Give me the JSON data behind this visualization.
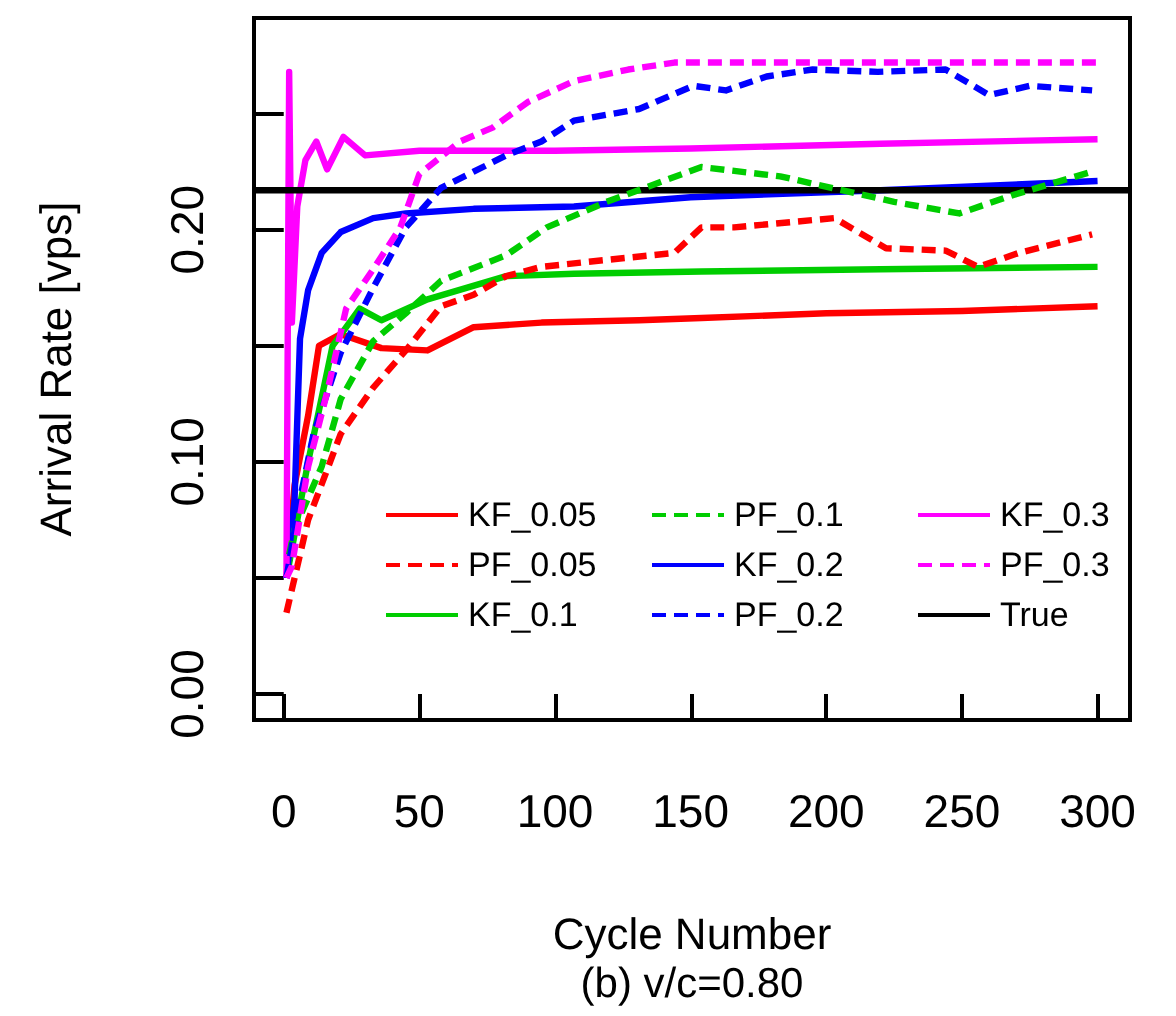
{
  "chart_data": {
    "type": "line",
    "xlabel": "Cycle Number",
    "ylabel": "Arrival Rate [vps]",
    "annotations": [
      "(b) v/c=0.80"
    ],
    "xlim": [
      -10.96,
      311.96
    ],
    "xticks": [
      0,
      50,
      100,
      150,
      200,
      250,
      300
    ],
    "ylim": [
      -0.0112,
      0.2912
    ],
    "yticks": [
      {
        "value": 0,
        "label": "0.00"
      },
      {
        "value": 0.05,
        "label": null
      },
      {
        "value": 0.1,
        "label": "0.10"
      },
      {
        "value": 0.15,
        "label": null
      },
      {
        "value": 0.2,
        "label": "0.20"
      },
      {
        "value": 0.25,
        "label": null
      }
    ],
    "grid": false,
    "legend": "bottom",
    "marker": "none",
    "line_style": "solid",
    "series": [
      {
        "name": "KF_0.05",
        "color": "#ff0000",
        "x": [
          1,
          4,
          9,
          13,
          21,
          36,
          53,
          70,
          95,
          131,
          154,
          200,
          250,
          300
        ],
        "values": [
          0.05,
          0.09,
          0.12,
          0.15,
          0.155,
          0.149,
          0.148,
          0.158,
          0.16,
          0.161,
          0.162,
          0.164,
          0.165,
          0.167
        ]
      },
      {
        "name": "PF_0.05",
        "color": "#ff0000",
        "line_style": "dashed",
        "x": [
          1,
          9,
          21,
          33,
          45,
          58,
          70,
          82,
          95,
          119,
          144,
          154,
          166,
          203,
          222,
          244,
          256,
          271,
          298
        ],
        "values": [
          0.035,
          0.075,
          0.112,
          0.132,
          0.148,
          0.167,
          0.172,
          0.18,
          0.184,
          0.187,
          0.19,
          0.201,
          0.201,
          0.205,
          0.192,
          0.191,
          0.184,
          0.19,
          0.198
        ]
      },
      {
        "name": "KF_0.1",
        "color": "#00cd00",
        "x": [
          1,
          9,
          18,
          28,
          36,
          53,
          82,
          107,
          154,
          220,
          300
        ],
        "values": [
          0.05,
          0.1,
          0.15,
          0.166,
          0.161,
          0.17,
          0.18,
          0.181,
          0.182,
          0.183,
          0.184
        ]
      },
      {
        "name": "PF_0.1",
        "color": "#00cd00",
        "line_style": "dashed",
        "x": [
          2,
          4,
          14,
          21,
          33,
          45,
          58,
          82,
          97,
          119,
          154,
          183,
          225,
          249,
          269,
          298
        ],
        "values": [
          0.06,
          0.071,
          0.098,
          0.127,
          0.152,
          0.164,
          0.178,
          0.189,
          0.201,
          0.212,
          0.227,
          0.223,
          0.212,
          0.207,
          0.215,
          0.225
        ]
      },
      {
        "name": "KF_0.2",
        "color": "#0000ff",
        "x": [
          1,
          4,
          6,
          9,
          14,
          21,
          33,
          45,
          70,
          107,
          150,
          220,
          300
        ],
        "values": [
          0.05,
          0.084,
          0.153,
          0.174,
          0.19,
          0.199,
          0.205,
          0.207,
          0.209,
          0.21,
          0.214,
          0.217,
          0.221
        ]
      },
      {
        "name": "PF_0.2",
        "color": "#0000ff",
        "line_style": "dashed",
        "x": [
          1,
          6,
          11,
          21,
          33,
          45,
          58,
          70,
          82,
          95,
          107,
          131,
          151,
          163,
          178,
          195,
          219,
          244,
          260,
          275,
          298
        ],
        "values": [
          0.05,
          0.084,
          0.112,
          0.147,
          0.175,
          0.201,
          0.218,
          0.225,
          0.232,
          0.238,
          0.247,
          0.252,
          0.262,
          0.26,
          0.266,
          0.269,
          0.268,
          0.269,
          0.258,
          0.262,
          0.26
        ]
      },
      {
        "name": "KF_0.3",
        "color": "#ff00ff",
        "x": [
          1,
          2,
          3,
          5,
          8,
          12,
          16,
          22,
          30,
          50,
          100,
          150,
          220,
          300
        ],
        "values": [
          0.05,
          0.268,
          0.16,
          0.21,
          0.23,
          0.238,
          0.226,
          0.24,
          0.232,
          0.234,
          0.234,
          0.235,
          0.237,
          0.239
        ]
      },
      {
        "name": "PF_0.3",
        "color": "#ff00ff",
        "line_style": "dashed",
        "x": [
          1,
          3,
          9,
          16,
          23,
          33,
          43,
          50,
          65,
          77,
          90,
          107,
          127,
          144,
          300
        ],
        "values": [
          0.05,
          0.055,
          0.098,
          0.13,
          0.166,
          0.183,
          0.201,
          0.224,
          0.238,
          0.244,
          0.255,
          0.264,
          0.269,
          0.272,
          0.272
        ]
      },
      {
        "name": "True",
        "color": "#000000",
        "x": [
          -10.96,
          311.96
        ],
        "values": [
          0.217,
          0.217
        ]
      }
    ]
  }
}
